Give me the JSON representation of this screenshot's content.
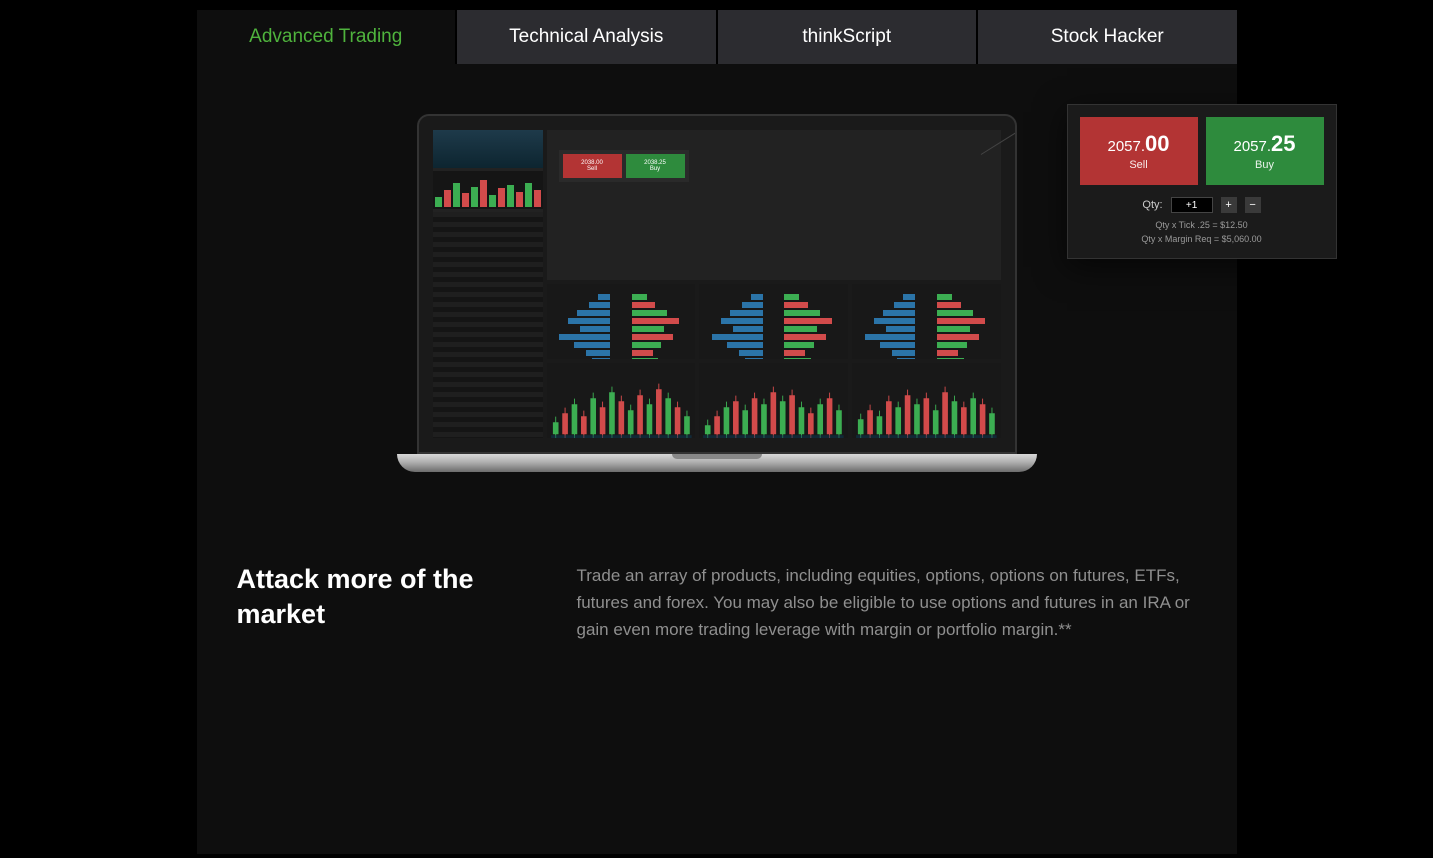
{
  "tabs": [
    {
      "label": "Advanced Trading",
      "active": true
    },
    {
      "label": "Technical Analysis",
      "active": false
    },
    {
      "label": "thinkScript",
      "active": false
    },
    {
      "label": "Stock Hacker",
      "active": false
    }
  ],
  "colors": {
    "accent_green": "#4fb33d",
    "sell_red": "#b33434",
    "buy_green": "#2e8b3d",
    "depth_blue": "#2b74a8",
    "candle_up": "#3cae52",
    "candle_down": "#d24b4b",
    "panel_bg": "#0e0e0e",
    "tab_inactive_bg": "#2c2c30"
  },
  "mini_ticket": {
    "sell_price": "2038.00",
    "sell_label": "Sell",
    "buy_price": "2038.25",
    "buy_label": "Buy"
  },
  "popout_ticket": {
    "sell_small": "2057.",
    "sell_big": "00",
    "sell_label": "Sell",
    "buy_small": "2057.",
    "buy_big": "25",
    "buy_label": "Buy",
    "qty_label": "Qty:",
    "qty_value": "+1",
    "qty_tick_line": "Qty x Tick .25 = $12.50",
    "margin_line": "Qty x Margin Req = $5,060.00"
  },
  "depth_panels": {
    "left_bars": [
      0.2,
      0.35,
      0.55,
      0.7,
      0.5,
      0.85,
      0.6,
      0.4,
      0.3,
      0.65
    ],
    "right_bars": [
      0.25,
      0.4,
      0.6,
      0.8,
      0.55,
      0.7,
      0.5,
      0.35,
      0.45,
      0.6
    ]
  },
  "side_candle_heights": [
    0.3,
    0.5,
    0.7,
    0.4,
    0.6,
    0.8,
    0.35,
    0.55,
    0.65,
    0.45,
    0.7,
    0.5
  ],
  "chart_panels": [
    {
      "bars": [
        0.2,
        0.35,
        0.5,
        0.3,
        0.6,
        0.45,
        0.7,
        0.55,
        0.4,
        0.65,
        0.5,
        0.75,
        0.6,
        0.45,
        0.3
      ]
    },
    {
      "bars": [
        0.15,
        0.3,
        0.45,
        0.55,
        0.4,
        0.6,
        0.5,
        0.7,
        0.55,
        0.65,
        0.45,
        0.35,
        0.5,
        0.6,
        0.4
      ]
    },
    {
      "bars": [
        0.25,
        0.4,
        0.3,
        0.55,
        0.45,
        0.65,
        0.5,
        0.6,
        0.4,
        0.7,
        0.55,
        0.45,
        0.6,
        0.5,
        0.35
      ]
    }
  ],
  "heading": "Attack more of the market",
  "body": "Trade an array of products, including equities, options, options on futures, ETFs, futures and forex. You may also be eligible to use options and futures in an IRA or gain even more trading leverage with margin or portfolio margin.**"
}
